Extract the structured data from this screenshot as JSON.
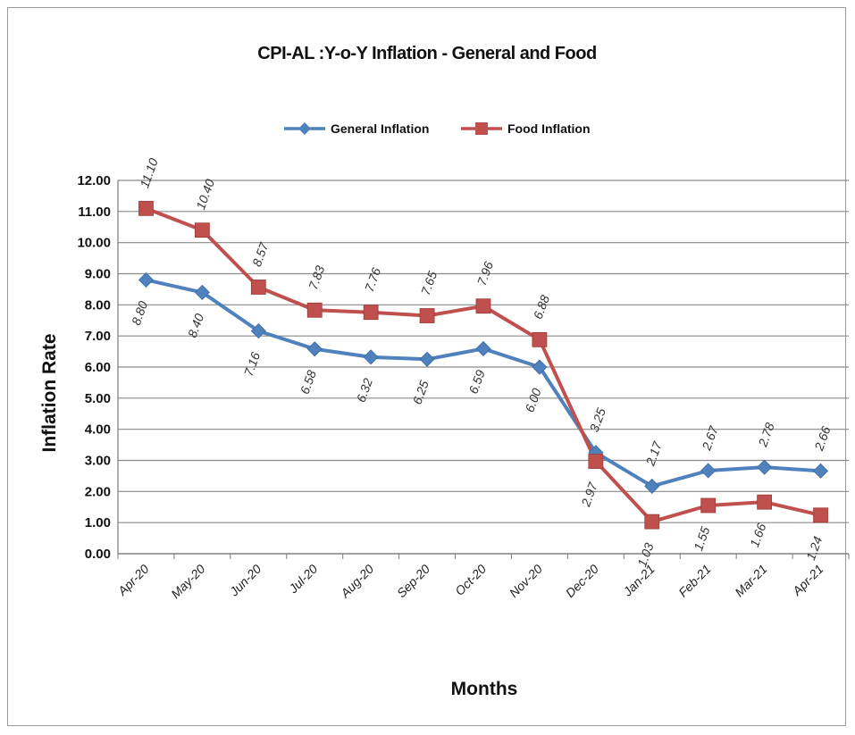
{
  "chart_data": {
    "type": "line",
    "title": "CPI-AL :Y-o-Y Inflation - General and Food",
    "xlabel": "Months",
    "ylabel": "Inflation Rate",
    "ylim": [
      0,
      12
    ],
    "y_ticks": [
      "0.00",
      "1.00",
      "2.00",
      "3.00",
      "4.00",
      "5.00",
      "6.00",
      "7.00",
      "8.00",
      "9.00",
      "10.00",
      "11.00",
      "12.00"
    ],
    "grid": true,
    "legend_position": "top",
    "categories": [
      "Apr-20",
      "May-20",
      "Jun-20",
      "Jul-20",
      "Aug-20",
      "Sep-20",
      "Oct-20",
      "Nov-20",
      "Dec-20",
      "Jan-21",
      "Feb-21",
      "Mar-21",
      "Apr-21"
    ],
    "series": [
      {
        "name": "General Inflation",
        "color": "#4F81BD",
        "marker": "diamond",
        "values": [
          8.8,
          8.4,
          7.16,
          6.58,
          6.32,
          6.25,
          6.59,
          6.0,
          3.25,
          2.17,
          2.67,
          2.78,
          2.66
        ],
        "labels": [
          "8.80",
          "8.40",
          "7.16",
          "6.58",
          "6.32",
          "6.25",
          "6.59",
          "6.00",
          "3.25",
          "2.17",
          "2.67",
          "2.78",
          "2.66"
        ]
      },
      {
        "name": "Food Inflation",
        "color": "#C0504D",
        "marker": "square",
        "values": [
          11.1,
          10.4,
          8.57,
          7.83,
          7.76,
          7.65,
          7.96,
          6.88,
          2.97,
          1.03,
          1.55,
          1.66,
          1.24
        ],
        "labels": [
          "11.10",
          "10.40",
          "8.57",
          "7.83",
          "7.76",
          "7.65",
          "7.96",
          "6.88",
          "2.97",
          "1.03",
          "1.55",
          "1.66",
          "1.24"
        ]
      }
    ]
  }
}
